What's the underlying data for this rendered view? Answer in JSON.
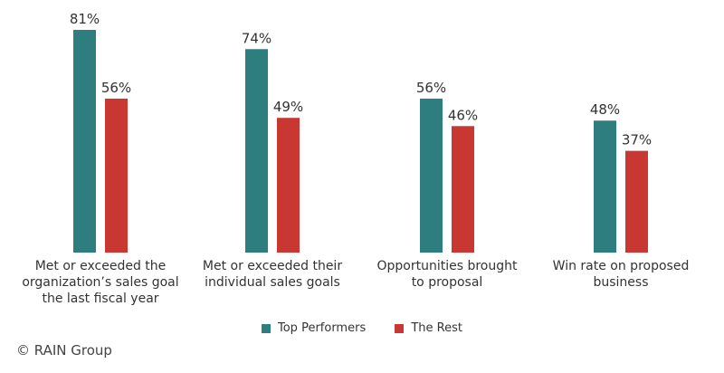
{
  "chart_data": {
    "type": "bar",
    "categories": [
      "Met or exceeded the organization’s sales goal the last fiscal year",
      "Met or exceeded their individual sales goals",
      "Opportunities brought to proposal",
      "Win rate on proposed business"
    ],
    "category_lines": [
      [
        "Met or exceeded the",
        "organization’s sales goal",
        "the last fiscal year"
      ],
      [
        "Met or exceeded their",
        "individual sales goals"
      ],
      [
        "Opportunities brought",
        "to proposal"
      ],
      [
        "Win rate on proposed",
        "business"
      ]
    ],
    "series": [
      {
        "name": "Top Performers",
        "color": "#2e7d7f",
        "values": [
          81,
          74,
          56,
          48
        ],
        "labels": [
          "81%",
          "74%",
          "56%",
          "48%"
        ]
      },
      {
        "name": "The Rest",
        "color": "#c83732",
        "values": [
          56,
          49,
          46,
          37
        ],
        "labels": [
          "56%",
          "49%",
          "46%",
          "37%"
        ]
      }
    ],
    "ylim": [
      0,
      81
    ],
    "grid": false,
    "legend_position": "bottom"
  },
  "copyright": "© RAIN Group"
}
